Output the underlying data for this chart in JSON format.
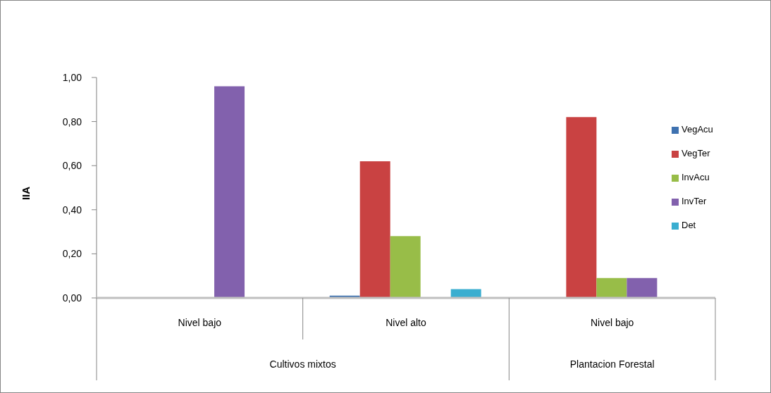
{
  "chart_data": {
    "type": "bar",
    "ylabel": "IIA",
    "categories": [
      "Nivel bajo",
      "Nivel alto",
      "Nivel bajo"
    ],
    "annotations": [
      "Cultivos mixtos",
      "Plantacion Forestal"
    ],
    "series": [
      {
        "name": "VegAcu",
        "color": "#3f72b0",
        "values": [
          0,
          0.01,
          0
        ]
      },
      {
        "name": "VegTer",
        "color": "#c94242",
        "values": [
          0,
          0.62,
          0.82
        ]
      },
      {
        "name": "InvAcu",
        "color": "#98bd48",
        "values": [
          0,
          0.28,
          0.09
        ]
      },
      {
        "name": "InvTer",
        "color": "#8261ad",
        "values": [
          0.96,
          0,
          0.09
        ]
      },
      {
        "name": "Det",
        "color": "#3aaed0",
        "values": [
          0,
          0.04,
          0
        ]
      }
    ],
    "ylim": [
      0,
      1
    ],
    "yticks": [
      {
        "value": 0,
        "label": "0,00"
      },
      {
        "value": 0.2,
        "label": "0,20"
      },
      {
        "value": 0.4,
        "label": "0,40"
      },
      {
        "value": 0.6,
        "label": "0,60"
      },
      {
        "value": 0.8,
        "label": "0,80"
      },
      {
        "value": 1,
        "label": "1,00"
      }
    ],
    "legend": "right"
  }
}
